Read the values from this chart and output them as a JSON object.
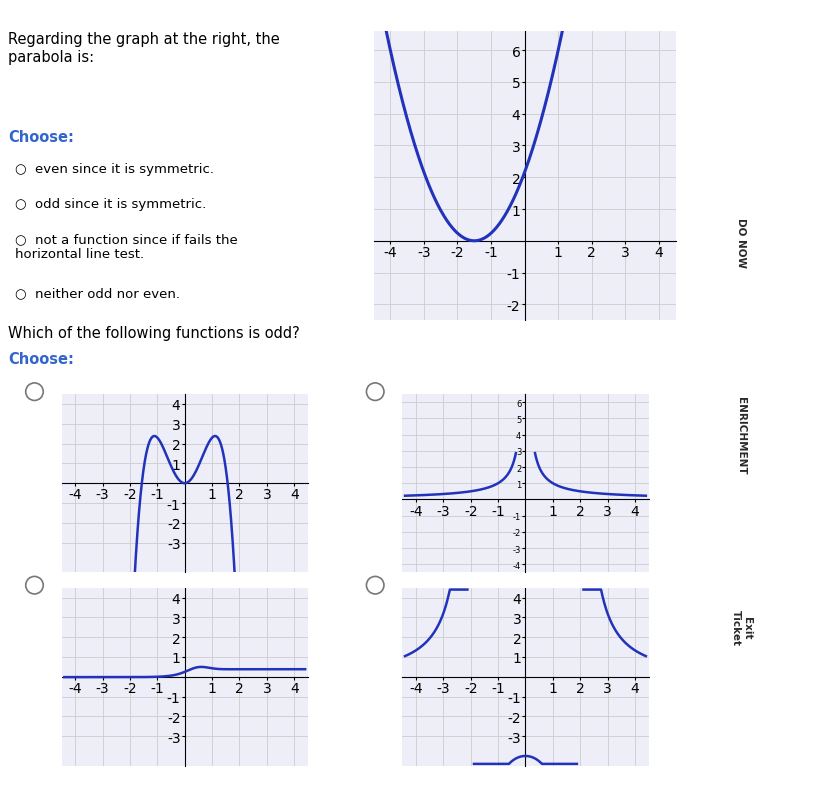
{
  "bg_color": "#ffffff",
  "choose_color": "#3366cc",
  "graph_color": "#2233bb",
  "graph_bg": "#eeeef8",
  "sidebar_bg": "#1a3399",
  "tab_link_color": "#4472c4",
  "tab_donow_color": "#7db87d",
  "tab_enrichment_color": "#c9a8a8",
  "tab_exitticket_color": "#ffffcc"
}
